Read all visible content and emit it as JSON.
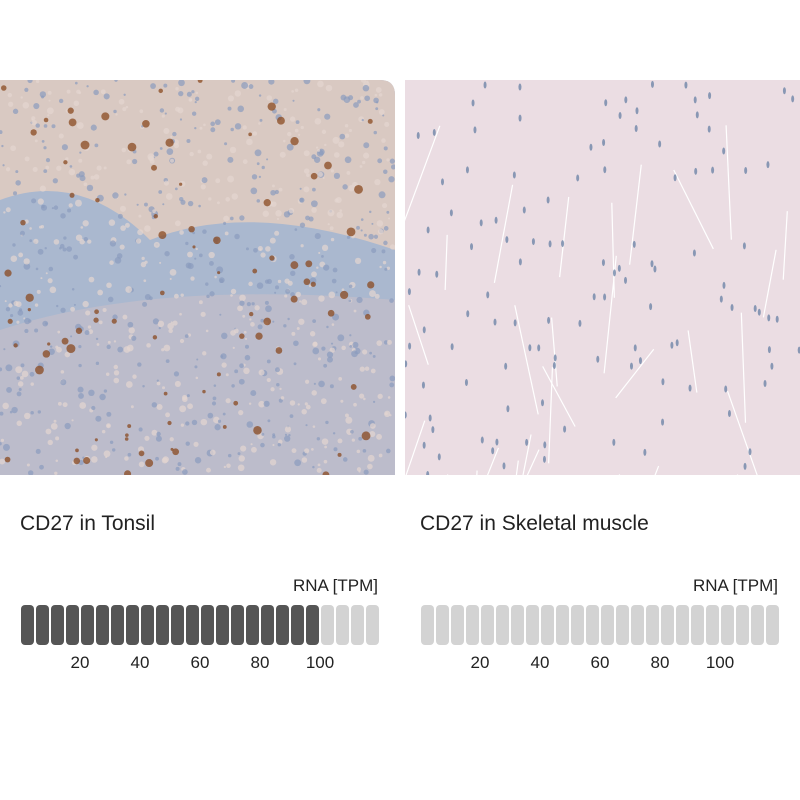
{
  "panels": [
    {
      "caption": "CD27 in Tonsil",
      "chart_data": {
        "type": "segment-bar",
        "title": "RNA [TPM]",
        "value": 100,
        "xlim": [
          0,
          120
        ],
        "xticks": [
          20,
          40,
          60,
          80,
          100
        ],
        "color": "#555555",
        "empty_color": "#d3d3d3"
      }
    },
    {
      "caption": "CD27 in Skeletal muscle",
      "chart_data": {
        "type": "segment-bar",
        "title": "RNA [TPM]",
        "value": 0,
        "xlim": [
          0,
          120
        ],
        "xticks": [
          20,
          40,
          60,
          80,
          100
        ],
        "color": "#555555",
        "empty_color": "#d3d3d3"
      }
    }
  ]
}
